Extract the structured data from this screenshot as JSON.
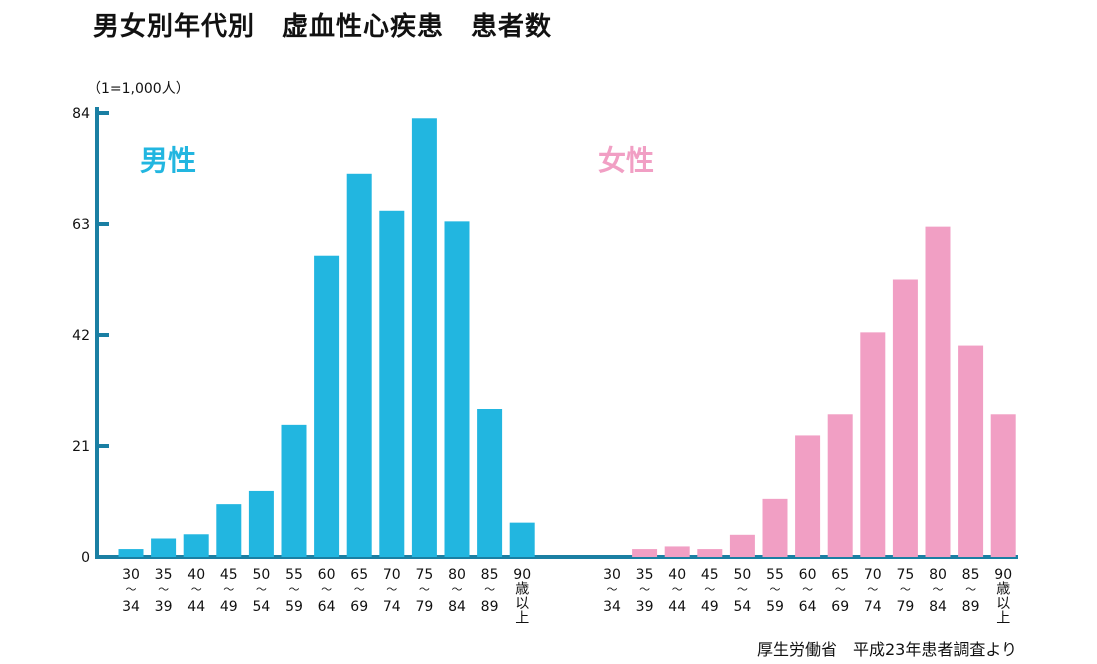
{
  "title": "男女別年代別　虚血性心疾患　患者数",
  "unit_note": "（1=1,000人）",
  "source": "厚生労働省　平成23年患者調査より",
  "colors": {
    "male": "#22b6e0",
    "female": "#f19fc4",
    "axis": "#1a7fa3"
  },
  "chart_data": {
    "type": "bar",
    "ylim": [
      0,
      84
    ],
    "yticks": [
      0,
      21,
      42,
      63,
      84
    ],
    "groups": [
      {
        "name": "男性",
        "categories": [
          [
            "30",
            "〜",
            "34"
          ],
          [
            "35",
            "〜",
            "39"
          ],
          [
            "40",
            "〜",
            "44"
          ],
          [
            "45",
            "〜",
            "49"
          ],
          [
            "50",
            "〜",
            "54"
          ],
          [
            "55",
            "〜",
            "59"
          ],
          [
            "60",
            "〜",
            "64"
          ],
          [
            "65",
            "〜",
            "69"
          ],
          [
            "70",
            "〜",
            "74"
          ],
          [
            "75",
            "〜",
            "79"
          ],
          [
            "80",
            "〜",
            "84"
          ],
          [
            "85",
            "〜",
            "89"
          ],
          [
            "90",
            "歳",
            "以",
            "上"
          ]
        ],
        "values": [
          1.5,
          3.5,
          4.3,
          10,
          12.5,
          25,
          57,
          72.5,
          65.5,
          83,
          63.5,
          28,
          6.5
        ]
      },
      {
        "name": "女性",
        "categories": [
          [
            "30",
            "〜",
            "34"
          ],
          [
            "35",
            "〜",
            "39"
          ],
          [
            "40",
            "〜",
            "44"
          ],
          [
            "45",
            "〜",
            "49"
          ],
          [
            "50",
            "〜",
            "54"
          ],
          [
            "55",
            "〜",
            "59"
          ],
          [
            "60",
            "〜",
            "64"
          ],
          [
            "65",
            "〜",
            "69"
          ],
          [
            "70",
            "〜",
            "74"
          ],
          [
            "75",
            "〜",
            "79"
          ],
          [
            "80",
            "〜",
            "84"
          ],
          [
            "85",
            "〜",
            "89"
          ],
          [
            "90",
            "歳",
            "以",
            "上"
          ]
        ],
        "values": [
          0,
          1.5,
          2,
          1.5,
          4.2,
          11,
          23,
          27,
          42.5,
          52.5,
          62.5,
          40,
          27
        ]
      }
    ]
  }
}
